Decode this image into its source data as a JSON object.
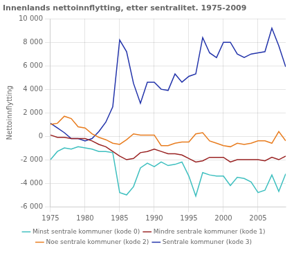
{
  "chart_data": {
    "type": "line",
    "title": "Innenlands nettoinnflytting, etter sentralitet. 1975-2009",
    "ylabel": "Nettoinnflytting",
    "x": [
      1975,
      1976,
      1977,
      1978,
      1979,
      1980,
      1981,
      1982,
      1983,
      1984,
      1985,
      1986,
      1987,
      1988,
      1989,
      1990,
      1991,
      1992,
      1993,
      1994,
      1995,
      1996,
      1997,
      1998,
      1999,
      2000,
      2001,
      2002,
      2003,
      2004,
      2005,
      2006,
      2007,
      2008,
      2009
    ],
    "series": [
      {
        "name": "Minst sentrale kommuner (kode 0)",
        "color": "#3dbfbf",
        "values": [
          -2000,
          -1300,
          -1000,
          -1100,
          -900,
          -1000,
          -1100,
          -1300,
          -1300,
          -1400,
          -4800,
          -5000,
          -4300,
          -2700,
          -2300,
          -2600,
          -2200,
          -2500,
          -2400,
          -2200,
          -3400,
          -5100,
          -3100,
          -3300,
          -3400,
          -3400,
          -4200,
          -3500,
          -3600,
          -3900,
          -4800,
          -4600,
          -3300,
          -4700,
          -3200
        ]
      },
      {
        "name": "Mindre sentrale kommuner (kode 1)",
        "color": "#992222",
        "values": [
          100,
          -100,
          -100,
          -200,
          -200,
          -200,
          -400,
          -700,
          -900,
          -1300,
          -1700,
          -2000,
          -1900,
          -1400,
          -1300,
          -1100,
          -1300,
          -1500,
          -1500,
          -1600,
          -1900,
          -2200,
          -2100,
          -1800,
          -1800,
          -1800,
          -2200,
          -2000,
          -2000,
          -2000,
          -2000,
          -2100,
          -1800,
          -2000,
          -1700
        ]
      },
      {
        "name": "Noe sentrale kommuner (kode 2)",
        "color": "#e87c1e",
        "values": [
          1000,
          1100,
          1700,
          1500,
          800,
          700,
          200,
          -100,
          -300,
          -600,
          -700,
          -300,
          200,
          100,
          100,
          100,
          -800,
          -800,
          -600,
          -500,
          -500,
          200,
          300,
          -400,
          -600,
          -800,
          -900,
          -600,
          -700,
          -600,
          -400,
          -400,
          -600,
          400,
          -400
        ]
      },
      {
        "name": "Sentrale kommuner (kode 3)",
        "color": "#2233aa",
        "values": [
          1100,
          700,
          300,
          -200,
          -200,
          -400,
          -200,
          400,
          1200,
          2500,
          8200,
          7200,
          4500,
          2800,
          4600,
          4600,
          4000,
          3900,
          5300,
          4600,
          5100,
          5300,
          8400,
          7100,
          6700,
          8000,
          8000,
          7000,
          6700,
          7000,
          7100,
          7200,
          9200,
          7700,
          5900
        ]
      }
    ],
    "xlim": [
      1975,
      2009
    ],
    "xticks": [
      1975,
      1980,
      1985,
      1990,
      1995,
      2000,
      2005
    ],
    "ylim": [
      -6000,
      10000
    ],
    "yticks": [
      {
        "value": -6000,
        "label": "-6 000"
      },
      {
        "value": -4000,
        "label": "-4 000"
      },
      {
        "value": -2000,
        "label": "-2 000"
      },
      0,
      {
        "value": 2000,
        "label": "2 000"
      },
      {
        "value": 4000,
        "label": "4 000"
      },
      {
        "value": 6000,
        "label": "6 000"
      },
      {
        "value": 8000,
        "label": "8 000"
      },
      {
        "value": 10000,
        "label": "10 000"
      }
    ],
    "grid": true,
    "legend": "bottom"
  }
}
